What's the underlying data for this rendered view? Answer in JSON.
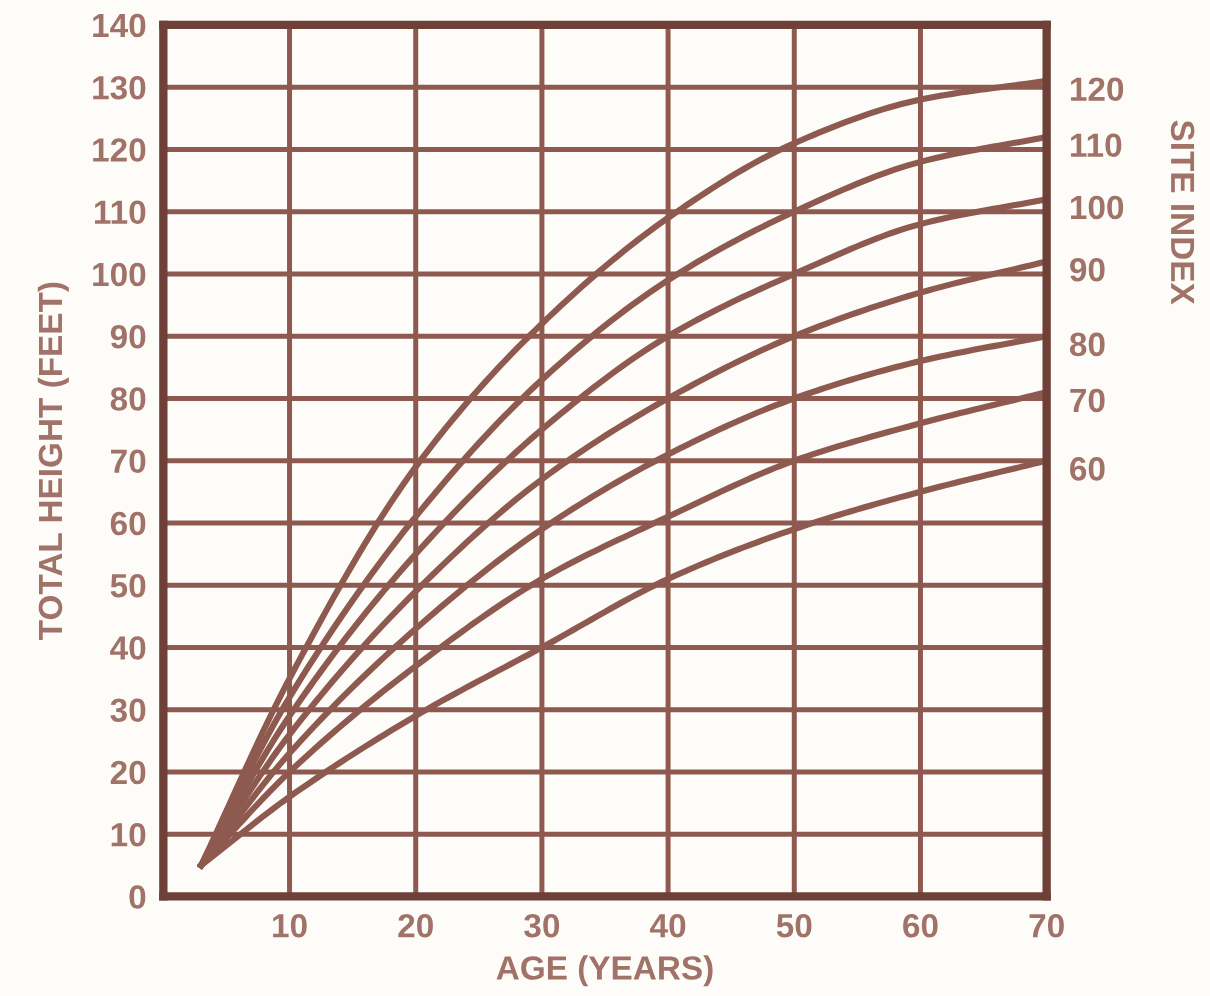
{
  "chart_data": {
    "type": "line",
    "xlabel": "AGE (YEARS)",
    "ylabel": "TOTAL HEIGHT (FEET)",
    "annotations": [
      "SITE INDEX"
    ],
    "x": [
      3,
      10,
      20,
      30,
      40,
      50,
      60,
      70
    ],
    "series": [
      {
        "name": "120",
        "color": "#8e5a50",
        "values": [
          5,
          35,
          69,
          92,
          109,
          121,
          128,
          131
        ]
      },
      {
        "name": "110",
        "color": "#8e5a50",
        "values": [
          5,
          32,
          61,
          83,
          99,
          110,
          118,
          122
        ]
      },
      {
        "name": "100",
        "color": "#8e5a50",
        "values": [
          5,
          29,
          55,
          75,
          90,
          100,
          108,
          112
        ]
      },
      {
        "name": "90",
        "color": "#8e5a50",
        "values": [
          5,
          26,
          49,
          67,
          80,
          90,
          97,
          102
        ]
      },
      {
        "name": "80",
        "color": "#8e5a50",
        "values": [
          5,
          23,
          43,
          59,
          71,
          80,
          86,
          90
        ]
      },
      {
        "name": "70",
        "color": "#8e5a50",
        "values": [
          5,
          20,
          37,
          51,
          61,
          70,
          76,
          81
        ]
      },
      {
        "name": "60",
        "color": "#8e5a50",
        "values": [
          5,
          16,
          29,
          40,
          51,
          59,
          65,
          70
        ]
      }
    ],
    "xlim": [
      0,
      70
    ],
    "xticks": [
      10,
      20,
      30,
      40,
      50,
      60,
      70
    ],
    "ylim": [
      0,
      140
    ],
    "yticks": [
      0,
      10,
      20,
      30,
      40,
      50,
      60,
      70,
      80,
      90,
      100,
      110,
      120,
      130,
      140
    ],
    "grid": true,
    "legend": false,
    "marker": "none",
    "line_style": "solid"
  }
}
